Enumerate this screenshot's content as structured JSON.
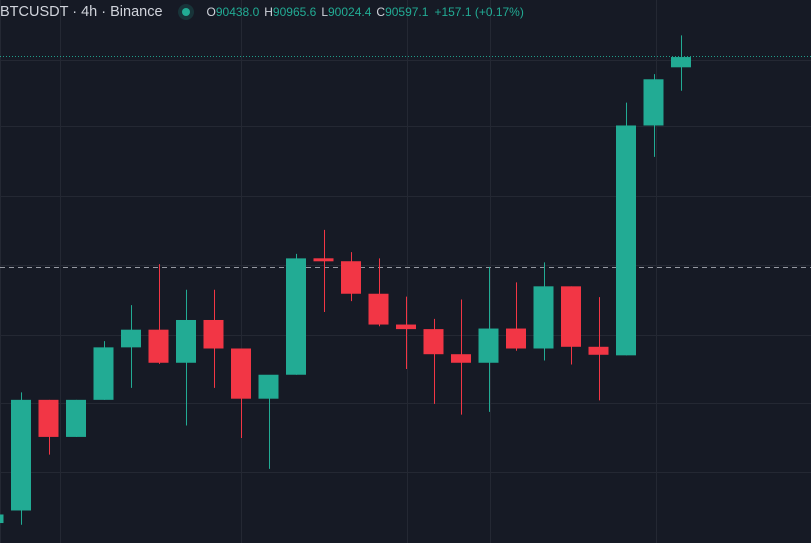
{
  "legend": {
    "symbol": "BTCUSDT · 4h · Binance",
    "open_label": "O",
    "open": "90438.0",
    "high_label": "H",
    "high": "90965.6",
    "low_label": "L",
    "low": "90024.4",
    "close_label": "C",
    "close": "90597.1",
    "change": "+157.1 (+0.17%)"
  },
  "colors": {
    "background": "#161a25",
    "grid": "#242833",
    "up": "#22ab94",
    "down": "#f23645",
    "text": "#d1d4dc",
    "last_price_line": "#22ab94",
    "crosshair": "#9598a1"
  },
  "chart_data": {
    "type": "candlestick",
    "title": "BTCUSDT · 4h · Binance",
    "xlabel": "",
    "ylabel": "",
    "grid": true,
    "ylim": [
      82060,
      91580
    ],
    "last_price": 90597.1,
    "horizontal_marker": 86900,
    "candles": [
      {
        "open": 82410,
        "high": 82700,
        "low": 82230,
        "close": 82560
      },
      {
        "open": 82630,
        "high": 84700,
        "low": 82380,
        "close": 84570
      },
      {
        "open": 84570,
        "high": 84570,
        "low": 83610,
        "close": 83920
      },
      {
        "open": 83920,
        "high": 84570,
        "low": 83920,
        "close": 84570
      },
      {
        "open": 84570,
        "high": 85600,
        "low": 84570,
        "close": 85490
      },
      {
        "open": 85490,
        "high": 86230,
        "low": 84780,
        "close": 85800
      },
      {
        "open": 85800,
        "high": 86950,
        "low": 85200,
        "close": 85220
      },
      {
        "open": 85220,
        "high": 86500,
        "low": 84120,
        "close": 85970
      },
      {
        "open": 85970,
        "high": 86500,
        "low": 84780,
        "close": 85470
      },
      {
        "open": 85470,
        "high": 85470,
        "low": 83900,
        "close": 84590
      },
      {
        "open": 84590,
        "high": 84970,
        "low": 83360,
        "close": 85010
      },
      {
        "open": 85010,
        "high": 87130,
        "low": 85010,
        "close": 87050
      },
      {
        "open": 87050,
        "high": 87550,
        "low": 86110,
        "close": 87000
      },
      {
        "open": 87000,
        "high": 87160,
        "low": 86300,
        "close": 86430
      },
      {
        "open": 86430,
        "high": 87050,
        "low": 85860,
        "close": 85890
      },
      {
        "open": 85890,
        "high": 86380,
        "low": 85110,
        "close": 85810
      },
      {
        "open": 85810,
        "high": 85990,
        "low": 84500,
        "close": 85370
      },
      {
        "open": 85370,
        "high": 86330,
        "low": 84310,
        "close": 85220
      },
      {
        "open": 85220,
        "high": 86900,
        "low": 84360,
        "close": 85820
      },
      {
        "open": 85820,
        "high": 86630,
        "low": 85430,
        "close": 85470
      },
      {
        "open": 85470,
        "high": 86980,
        "low": 85260,
        "close": 86560
      },
      {
        "open": 86560,
        "high": 86560,
        "low": 85190,
        "close": 85500
      },
      {
        "open": 85500,
        "high": 86370,
        "low": 84560,
        "close": 85360
      },
      {
        "open": 85350,
        "high": 89780,
        "low": 85350,
        "close": 89380
      },
      {
        "open": 89380,
        "high": 90280,
        "low": 88830,
        "close": 90190
      },
      {
        "open": 90400,
        "high": 90960,
        "low": 89990,
        "close": 90580
      }
    ]
  }
}
